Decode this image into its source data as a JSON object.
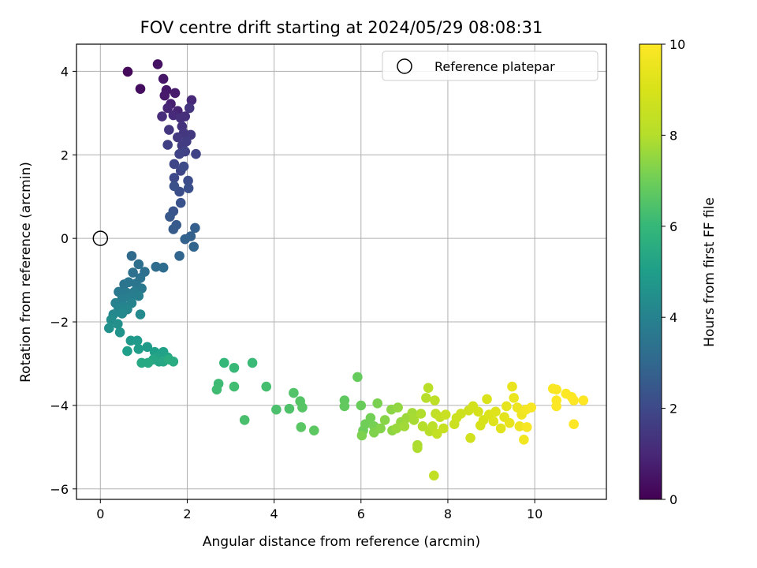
{
  "chart_data": {
    "type": "scatter",
    "title": "FOV centre drift starting at 2024/05/29 08:08:31",
    "xlabel": "Angular distance from reference (arcmin)",
    "ylabel": "Rotation from reference (arcmin)",
    "xlim": [
      -0.55,
      11.65
    ],
    "ylim": [
      -6.25,
      4.65
    ],
    "xticks": [
      0,
      2,
      4,
      6,
      8,
      10
    ],
    "yticks": [
      -6,
      -4,
      -2,
      0,
      2,
      4
    ],
    "grid": true,
    "legend": {
      "position": "top-right",
      "entries": [
        "Reference platepar"
      ]
    },
    "colorbar": {
      "label": "Hours from first FF file",
      "range": [
        0,
        10
      ],
      "ticks": [
        0,
        2,
        4,
        6,
        8,
        10
      ],
      "colormap": "viridis"
    },
    "reference": {
      "x": 0,
      "y": 0
    },
    "points": [
      [
        0.63,
        3.99,
        0.2
      ],
      [
        0.92,
        3.58,
        0.3
      ],
      [
        1.32,
        4.17,
        0.45
      ],
      [
        1.45,
        3.82,
        0.55
      ],
      [
        1.52,
        3.55,
        0.6
      ],
      [
        1.48,
        3.42,
        0.65
      ],
      [
        1.72,
        3.48,
        0.7
      ],
      [
        1.62,
        3.22,
        0.8
      ],
      [
        1.78,
        3.05,
        0.9
      ],
      [
        1.55,
        3.12,
        0.95
      ],
      [
        2.1,
        3.31,
        1.0
      ],
      [
        1.68,
        2.95,
        1.1
      ],
      [
        1.42,
        2.92,
        1.15
      ],
      [
        1.85,
        2.88,
        1.2
      ],
      [
        1.95,
        2.92,
        1.25
      ],
      [
        1.88,
        2.68,
        1.3
      ],
      [
        2.05,
        3.12,
        1.35
      ],
      [
        1.58,
        2.6,
        1.4
      ],
      [
        1.92,
        2.52,
        1.45
      ],
      [
        2.08,
        2.48,
        1.5
      ],
      [
        1.78,
        2.42,
        1.55
      ],
      [
        1.98,
        2.32,
        1.6
      ],
      [
        1.88,
        2.22,
        1.65
      ],
      [
        1.55,
        2.24,
        1.7
      ],
      [
        1.95,
        2.08,
        1.75
      ],
      [
        2.2,
        2.02,
        1.8
      ],
      [
        1.82,
        2.02,
        1.85
      ],
      [
        1.7,
        1.78,
        1.9
      ],
      [
        1.85,
        1.62,
        1.95
      ],
      [
        1.7,
        1.45,
        2.0
      ],
      [
        1.92,
        1.72,
        2.05
      ],
      [
        2.02,
        1.38,
        2.1
      ],
      [
        1.82,
        1.12,
        2.15
      ],
      [
        2.03,
        1.2,
        2.2
      ],
      [
        1.7,
        1.25,
        2.25
      ],
      [
        1.85,
        0.85,
        2.3
      ],
      [
        1.68,
        0.65,
        2.4
      ],
      [
        1.6,
        0.52,
        2.45
      ],
      [
        1.75,
        0.32,
        2.55
      ],
      [
        1.68,
        0.22,
        2.6
      ],
      [
        2.18,
        0.25,
        2.7
      ],
      [
        2.08,
        0.05,
        2.8
      ],
      [
        1.95,
        -0.02,
        2.85
      ],
      [
        2.15,
        -0.2,
        2.9
      ],
      [
        1.82,
        -0.42,
        2.95
      ],
      [
        0.72,
        -0.42,
        3.1
      ],
      [
        1.28,
        -0.68,
        3.15
      ],
      [
        1.45,
        -0.7,
        3.2
      ],
      [
        0.88,
        -0.62,
        3.25
      ],
      [
        1.02,
        -0.8,
        3.3
      ],
      [
        0.75,
        -0.82,
        3.35
      ],
      [
        0.92,
        -0.95,
        3.4
      ],
      [
        0.55,
        -1.1,
        3.45
      ],
      [
        0.65,
        -1.05,
        3.5
      ],
      [
        0.82,
        -1.08,
        3.55
      ],
      [
        0.95,
        -1.2,
        3.6
      ],
      [
        0.42,
        -1.28,
        3.65
      ],
      [
        0.6,
        -1.3,
        3.7
      ],
      [
        0.78,
        -1.28,
        3.75
      ],
      [
        0.5,
        -1.45,
        3.8
      ],
      [
        0.68,
        -1.42,
        3.85
      ],
      [
        0.88,
        -1.38,
        3.9
      ],
      [
        0.35,
        -1.55,
        3.95
      ],
      [
        0.55,
        -1.62,
        4.0
      ],
      [
        0.72,
        -1.55,
        4.05
      ],
      [
        0.42,
        -1.68,
        4.1
      ],
      [
        0.62,
        -1.7,
        4.15
      ],
      [
        0.3,
        -1.82,
        4.2
      ],
      [
        0.5,
        -1.8,
        4.25
      ],
      [
        0.92,
        -1.82,
        4.3
      ],
      [
        0.25,
        -1.95,
        4.4
      ],
      [
        0.4,
        -2.05,
        4.5
      ],
      [
        0.2,
        -2.15,
        4.55
      ],
      [
        0.45,
        -2.25,
        4.6
      ],
      [
        0.7,
        -2.45,
        4.8
      ],
      [
        0.85,
        -2.45,
        4.85
      ],
      [
        1.08,
        -2.6,
        4.9
      ],
      [
        0.88,
        -2.65,
        4.95
      ],
      [
        0.62,
        -2.7,
        5.0
      ],
      [
        1.25,
        -2.72,
        5.05
      ],
      [
        1.45,
        -2.72,
        5.1
      ],
      [
        1.3,
        -2.85,
        5.15
      ],
      [
        1.55,
        -2.85,
        5.2
      ],
      [
        1.35,
        -2.95,
        5.25
      ],
      [
        1.22,
        -2.9,
        5.3
      ],
      [
        1.45,
        -2.95,
        5.35
      ],
      [
        0.95,
        -2.98,
        5.4
      ],
      [
        1.1,
        -2.98,
        5.45
      ],
      [
        1.68,
        -2.95,
        5.5
      ],
      [
        1.58,
        -2.9,
        5.55
      ],
      [
        2.85,
        -2.98,
        6.0
      ],
      [
        3.08,
        -3.1,
        6.05
      ],
      [
        3.5,
        -2.98,
        6.1
      ],
      [
        2.72,
        -3.48,
        6.15
      ],
      [
        2.68,
        -3.62,
        6.2
      ],
      [
        3.08,
        -3.55,
        6.25
      ],
      [
        3.82,
        -3.55,
        6.3
      ],
      [
        3.32,
        -4.35,
        6.35
      ],
      [
        4.05,
        -4.1,
        6.4
      ],
      [
        4.35,
        -4.08,
        6.45
      ],
      [
        4.45,
        -3.7,
        6.5
      ],
      [
        4.6,
        -3.9,
        6.55
      ],
      [
        4.65,
        -4.05,
        6.6
      ],
      [
        4.62,
        -4.52,
        6.65
      ],
      [
        4.92,
        -4.6,
        6.7
      ],
      [
        5.62,
        -3.88,
        6.75
      ],
      [
        5.62,
        -4.02,
        6.8
      ],
      [
        5.92,
        -3.32,
        6.85
      ],
      [
        6.0,
        -4.0,
        6.9
      ],
      [
        6.05,
        -4.6,
        6.95
      ],
      [
        6.1,
        -4.45,
        7.0
      ],
      [
        6.22,
        -4.3,
        7.05
      ],
      [
        6.3,
        -4.5,
        7.1
      ],
      [
        6.38,
        -3.95,
        7.15
      ],
      [
        6.02,
        -4.72,
        7.2
      ],
      [
        6.3,
        -4.65,
        7.25
      ],
      [
        6.45,
        -4.55,
        7.3
      ],
      [
        6.55,
        -4.35,
        7.35
      ],
      [
        6.7,
        -4.1,
        7.4
      ],
      [
        6.72,
        -4.6,
        7.45
      ],
      [
        6.85,
        -4.05,
        7.5
      ],
      [
        6.92,
        -4.4,
        7.55
      ],
      [
        6.82,
        -4.55,
        7.6
      ],
      [
        7.05,
        -4.3,
        7.65
      ],
      [
        7.0,
        -4.5,
        7.7
      ],
      [
        7.18,
        -4.18,
        7.75
      ],
      [
        7.22,
        -4.35,
        7.8
      ],
      [
        7.3,
        -4.95,
        7.85
      ],
      [
        7.3,
        -5.02,
        7.9
      ],
      [
        7.38,
        -4.2,
        7.95
      ],
      [
        7.42,
        -4.5,
        8.0
      ],
      [
        7.5,
        -3.82,
        8.05
      ],
      [
        7.58,
        -4.62,
        8.1
      ],
      [
        7.55,
        -3.58,
        8.15
      ],
      [
        7.65,
        -4.5,
        8.2
      ],
      [
        7.7,
        -3.88,
        8.25
      ],
      [
        7.72,
        -4.2,
        8.3
      ],
      [
        7.68,
        -5.68,
        8.35
      ],
      [
        7.75,
        -4.68,
        8.4
      ],
      [
        7.82,
        -4.28,
        8.45
      ],
      [
        7.9,
        -4.55,
        8.5
      ],
      [
        7.95,
        -4.22,
        8.55
      ],
      [
        8.15,
        -4.45,
        8.6
      ],
      [
        8.2,
        -4.3,
        8.65
      ],
      [
        8.3,
        -4.2,
        8.7
      ],
      [
        8.48,
        -4.12,
        8.75
      ],
      [
        8.52,
        -4.78,
        8.8
      ],
      [
        8.58,
        -4.02,
        8.85
      ],
      [
        8.7,
        -4.15,
        8.9
      ],
      [
        8.75,
        -4.48,
        8.95
      ],
      [
        8.82,
        -4.35,
        9.0
      ],
      [
        8.9,
        -3.85,
        9.05
      ],
      [
        8.95,
        -4.22,
        9.1
      ],
      [
        9.05,
        -4.38,
        9.15
      ],
      [
        9.1,
        -4.15,
        9.2
      ],
      [
        9.22,
        -4.55,
        9.25
      ],
      [
        9.3,
        -4.28,
        9.3
      ],
      [
        9.35,
        -4.02,
        9.35
      ],
      [
        9.42,
        -4.42,
        9.4
      ],
      [
        9.48,
        -3.55,
        9.45
      ],
      [
        9.52,
        -3.82,
        9.5
      ],
      [
        9.6,
        -4.05,
        9.55
      ],
      [
        9.65,
        -4.5,
        9.6
      ],
      [
        9.7,
        -4.22,
        9.65
      ],
      [
        9.75,
        -4.82,
        9.7
      ],
      [
        9.8,
        -4.1,
        9.75
      ],
      [
        9.82,
        -4.52,
        9.8
      ],
      [
        9.92,
        -4.05,
        9.85
      ],
      [
        10.42,
        -3.6,
        9.9
      ],
      [
        10.5,
        -3.62,
        9.92
      ],
      [
        10.5,
        -4.02,
        9.95
      ],
      [
        10.5,
        -3.88,
        9.96
      ],
      [
        10.72,
        -3.72,
        9.98
      ],
      [
        10.85,
        -3.8,
        9.99
      ],
      [
        10.9,
        -3.88,
        10.0
      ],
      [
        10.9,
        -4.45,
        10.0
      ],
      [
        11.12,
        -3.88,
        10.0
      ]
    ]
  }
}
